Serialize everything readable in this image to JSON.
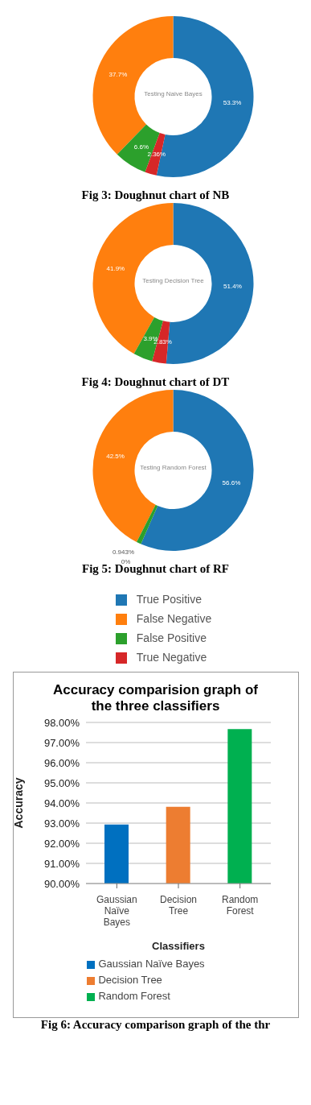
{
  "chart_data": [
    {
      "type": "donut",
      "title": "Testing Naive Bayes",
      "categories": [
        null,
        null,
        null,
        null
      ],
      "values": [
        53.3,
        37.7,
        6.6,
        2.36
      ],
      "colors": [
        "#1f77b4",
        "#ff7f0e",
        "#2ca02c",
        "#d62728"
      ],
      "value_labels": [
        "53.3%",
        "37.7%",
        "6.6%",
        "2.36%"
      ],
      "annotations": [
        "Fig 3: Doughnut chart of NB"
      ],
      "legend": false
    },
    {
      "type": "donut",
      "title": "Testing Decision Tree",
      "categories": [
        null,
        null,
        null,
        null
      ],
      "values": [
        51.4,
        41.9,
        3.9,
        2.83
      ],
      "colors": [
        "#1f77b4",
        "#ff7f0e",
        "#2ca02c",
        "#d62728"
      ],
      "value_labels": [
        "51.4%",
        "41.9%",
        "3.9%",
        "2.83%"
      ],
      "annotations": [
        "Fig 4: Doughnut chart of DT"
      ],
      "legend": false
    },
    {
      "type": "donut",
      "title": "Testing Random Forest",
      "categories": [
        "True Positive",
        "False Negative",
        "False Positive",
        "True Negative"
      ],
      "values": [
        56.6,
        42.5,
        0.943,
        0
      ],
      "colors": [
        "#1f77b4",
        "#ff7f0e",
        "#2ca02c",
        "#d62728"
      ],
      "value_labels": [
        "56.6%",
        "42.5%",
        "0.943%",
        "0%"
      ],
      "annotations": [
        "Fig 5: Doughnut chart of RF"
      ],
      "legend": "bottom"
    },
    {
      "type": "bar",
      "title": "Accuracy comparision graph of the three classifiers",
      "xlabel": "Classifiers",
      "ylabel": "Accuracy",
      "categories": [
        "Gaussian Naïve Bayes",
        "Decision Tree",
        "Random Forest"
      ],
      "stacked": true,
      "series": [
        {
          "name": "Gaussian Naïve Bayes",
          "color": "#0070c0",
          "values": [
            92.93,
            null,
            null
          ]
        },
        {
          "name": "Decision Tree",
          "color": "#ed7d31",
          "values": [
            null,
            93.81,
            null
          ]
        },
        {
          "name": "Random Forest",
          "color": "#00b050",
          "values": [
            null,
            null,
            97.67
          ]
        }
      ],
      "ylim": [
        90,
        98
      ],
      "yticks": [
        {
          "value": 90,
          "label": "90.00%"
        },
        {
          "value": 91,
          "label": "91.00%"
        },
        {
          "value": 92,
          "label": "92.00%"
        },
        {
          "value": 93,
          "label": "93.00%"
        },
        {
          "value": 94,
          "label": "94.00%"
        },
        {
          "value": 95,
          "label": "95.00%"
        },
        {
          "value": 96,
          "label": "96.00%"
        },
        {
          "value": 97,
          "label": "97.00%"
        },
        {
          "value": 98,
          "label": "98.00%"
        }
      ],
      "grid": "y",
      "legend": "bottom",
      "annotations": [
        "Fig 6: Accuracy comparison graph of the thr"
      ]
    }
  ]
}
